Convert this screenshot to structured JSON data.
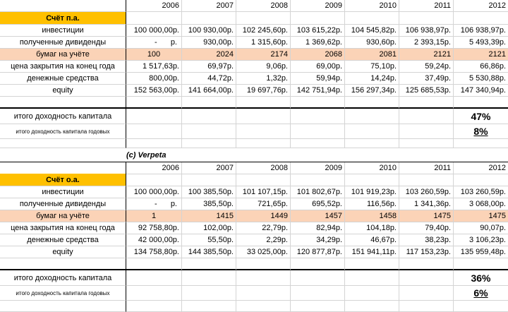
{
  "table1": {
    "years": [
      "2006",
      "2007",
      "2008",
      "2009",
      "2010",
      "2011",
      "2012"
    ],
    "account_label": "Счёт п.а.",
    "rows": [
      {
        "label": "инвестиции",
        "values": [
          "100 000,00р.",
          "100 930,00р.",
          "102 245,60р.",
          "103 615,22р.",
          "104 545,82р.",
          "106 938,97р.",
          "106 938,97р."
        ]
      },
      {
        "label": "полученные дивиденды",
        "values": [
          "-",
          "930,00р.",
          "1 315,60р.",
          "1 369,62р.",
          "930,60р.",
          "2 393,15р.",
          "5 493,39р."
        ],
        "first_unit": "р."
      },
      {
        "label": "бумаг на учёте",
        "values": [
          "100",
          "2024",
          "2174",
          "2068",
          "2081",
          "2121",
          "2121"
        ]
      },
      {
        "label": "цена закрытия на конец года",
        "values": [
          "1 517,63р.",
          "69,97р.",
          "9,06р.",
          "69,00р.",
          "75,10р.",
          "59,24р.",
          "66,86р."
        ]
      },
      {
        "label": "денежные средства",
        "values": [
          "800,00р.",
          "44,72р.",
          "1,32р.",
          "59,94р.",
          "14,24р.",
          "37,49р.",
          "5 530,88р."
        ]
      },
      {
        "label": "equity",
        "values": [
          "152 563,00р.",
          "141 664,00р.",
          "19 697,76р.",
          "142 751,94р.",
          "156 297,34р.",
          "125 685,53р.",
          "147 340,94р."
        ]
      }
    ],
    "total_return_label": "итого доходность капитала",
    "total_return_value": "47%",
    "annual_return_label": "итого доходность капитала годовых",
    "annual_return_value": "8%"
  },
  "credit": "(c) Verpeta",
  "table2": {
    "years": [
      "2006",
      "2007",
      "2008",
      "2009",
      "2010",
      "2011",
      "2012"
    ],
    "account_label": "Счёт о.а.",
    "rows": [
      {
        "label": "инвестиции",
        "values": [
          "100 000,00р.",
          "100 385,50р.",
          "101 107,15р.",
          "101 802,67р.",
          "101 919,23р.",
          "103 260,59р.",
          "103 260,59р."
        ]
      },
      {
        "label": "полученные дивиденды",
        "values": [
          "-",
          "385,50р.",
          "721,65р.",
          "695,52р.",
          "116,56р.",
          "1 341,36р.",
          "3 068,00р."
        ],
        "first_unit": "р."
      },
      {
        "label": "бумаг на учёте",
        "values": [
          "1",
          "1415",
          "1449",
          "1457",
          "1458",
          "1475",
          "1475"
        ]
      },
      {
        "label": "цена закрытия на конец года",
        "values": [
          "92 758,80р.",
          "102,00р.",
          "22,79р.",
          "82,94р.",
          "104,18р.",
          "79,40р.",
          "90,07р."
        ]
      },
      {
        "label": "денежные средства",
        "values": [
          "42 000,00р.",
          "55,50р.",
          "2,29р.",
          "34,29р.",
          "46,67р.",
          "38,23р.",
          "3 106,23р."
        ]
      },
      {
        "label": "equity",
        "values": [
          "134 758,80р.",
          "144 385,50р.",
          "33 025,00р.",
          "120 877,87р.",
          "151 941,11р.",
          "117 153,23р.",
          "135 959,48р."
        ]
      }
    ],
    "total_return_label": "итого доходность капитала",
    "total_return_value": "36%",
    "annual_return_label": "итого доходность капитала годовых",
    "annual_return_value": "6%"
  },
  "colors": {
    "account_header": "#ffc000",
    "highlight_row": "#fbd3b7"
  }
}
